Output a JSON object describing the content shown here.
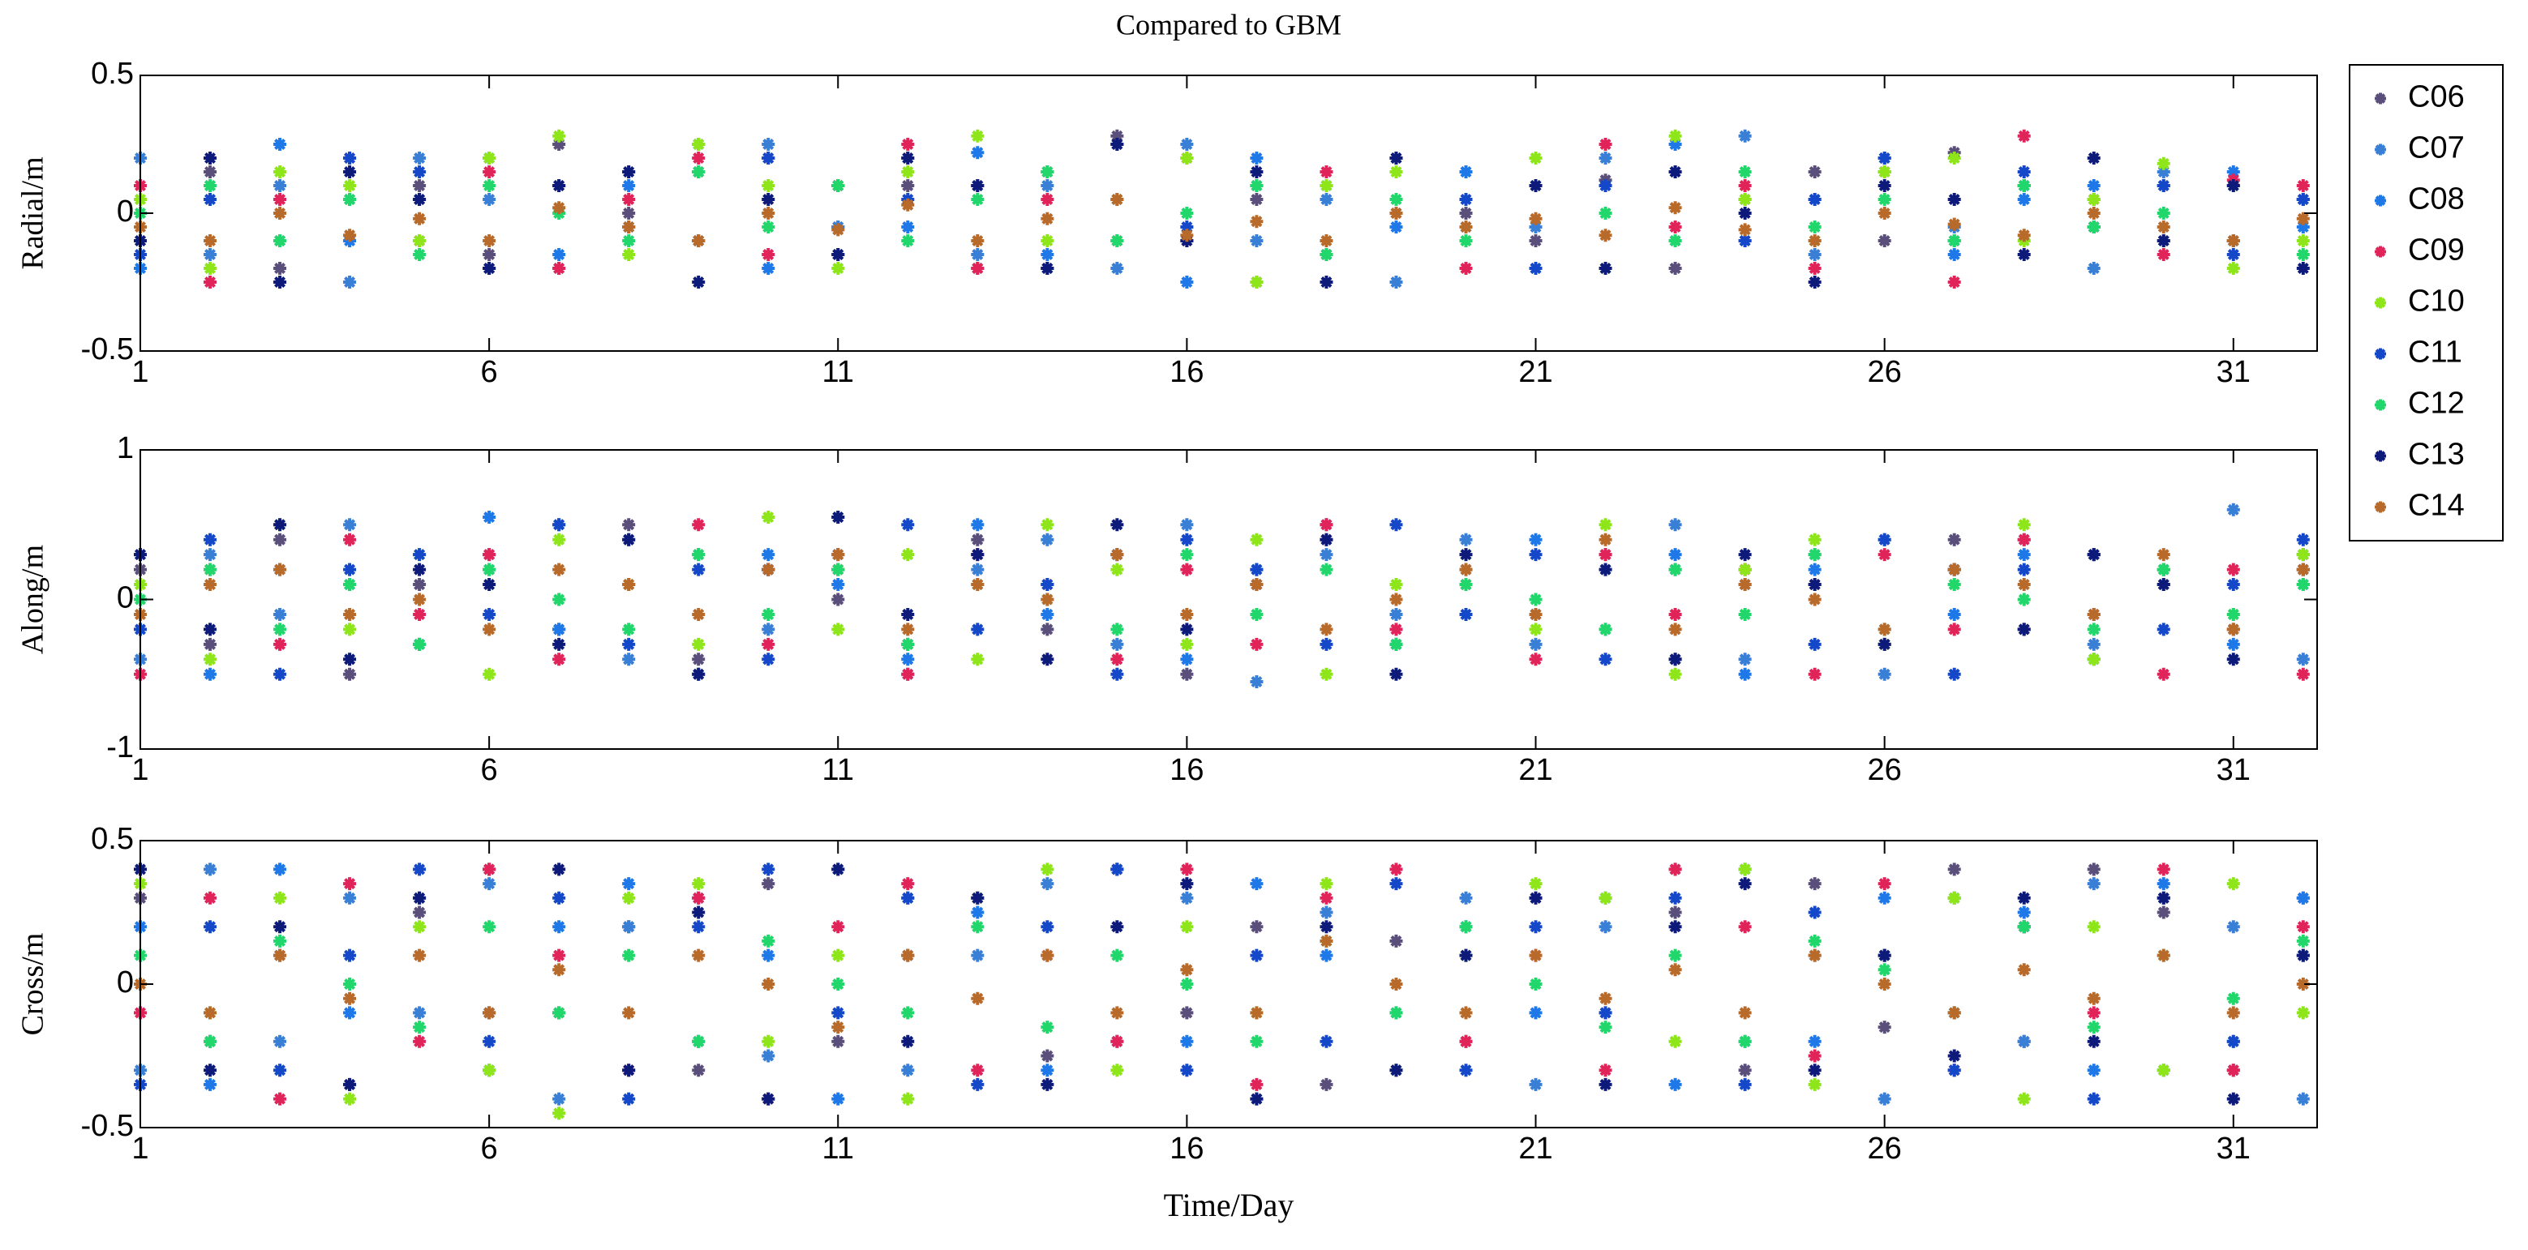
{
  "chart_data": [
    {
      "type": "scatter",
      "title": "Compared to GBM",
      "ylabel": "Radial/m",
      "x": [
        1,
        2,
        3,
        4,
        5,
        6,
        7,
        8,
        9,
        10,
        11,
        12,
        13,
        14,
        15,
        16,
        17,
        18,
        19,
        20,
        21,
        22,
        23,
        24,
        25,
        26,
        27,
        28,
        29,
        30,
        31,
        32
      ],
      "xlim": [
        1,
        32.2
      ],
      "xticks": [
        1,
        6,
        11,
        16,
        21,
        26,
        31
      ],
      "ylim": [
        -0.5,
        0.5
      ],
      "yticks": [
        -0.5,
        0,
        0.5
      ],
      "series": [
        {
          "name": "C06",
          "color": "#5a4e7a",
          "values": [
            -0.1,
            0.15,
            -0.2,
            0.05,
            0.1,
            -0.15,
            0.25,
            0.0,
            -0.1,
            0.2,
            -0.05,
            0.1,
            -0.2,
            0.15,
            0.28,
            -0.1,
            0.05,
            -0.15,
            0.2,
            0.0,
            -0.1,
            0.12,
            -0.2,
            0.05,
            0.15,
            -0.1,
            0.22,
            0.1,
            -0.05,
            0.1,
            -0.1,
            0.05
          ]
        },
        {
          "name": "C07",
          "color": "#3a7fd6",
          "values": [
            0.2,
            -0.15,
            0.1,
            -0.25,
            0.2,
            0.05,
            -0.2,
            0.15,
            -0.1,
            0.25,
            -0.05,
            0.2,
            -0.15,
            0.1,
            -0.2,
            0.25,
            -0.1,
            0.05,
            -0.25,
            0.15,
            -0.05,
            0.2,
            -0.1,
            0.28,
            -0.15,
            0.2,
            -0.05,
            0.1,
            -0.2,
            0.15,
            -0.1,
            0.05
          ]
        },
        {
          "name": "C08",
          "color": "#1f78e8",
          "values": [
            -0.2,
            0.1,
            0.25,
            -0.1,
            0.05,
            0.2,
            -0.15,
            0.1,
            0.25,
            -0.2,
            0.1,
            -0.05,
            0.22,
            -0.15,
            0.05,
            -0.25,
            0.2,
            0.1,
            -0.05,
            0.15,
            -0.2,
            0.1,
            0.25,
            -0.1,
            0.05,
            0.2,
            -0.15,
            0.05,
            0.1,
            -0.1,
            0.15,
            -0.05
          ]
        },
        {
          "name": "C09",
          "color": "#e0245a",
          "values": [
            0.1,
            -0.25,
            0.05,
            0.2,
            -0.1,
            0.15,
            -0.2,
            0.05,
            0.2,
            -0.15,
            0.1,
            0.25,
            -0.2,
            0.05,
            -0.1,
            0.2,
            -0.25,
            0.15,
            0.0,
            -0.2,
            0.1,
            0.25,
            -0.05,
            0.1,
            -0.2,
            0.15,
            -0.25,
            0.28,
            0.05,
            -0.15,
            0.12,
            0.1
          ]
        },
        {
          "name": "C10",
          "color": "#8ee51a",
          "values": [
            0.05,
            -0.2,
            0.15,
            0.1,
            -0.1,
            0.2,
            0.28,
            -0.15,
            0.25,
            0.1,
            -0.2,
            0.15,
            0.28,
            -0.1,
            0.05,
            0.2,
            -0.25,
            0.1,
            0.15,
            -0.1,
            0.2,
            -0.2,
            0.28,
            0.05,
            -0.1,
            0.15,
            0.2,
            -0.1,
            0.05,
            0.18,
            -0.2,
            -0.1
          ]
        },
        {
          "name": "C11",
          "color": "#1548c8",
          "values": [
            -0.15,
            0.05,
            -0.1,
            0.2,
            0.15,
            -0.2,
            0.1,
            -0.05,
            0.15,
            0.2,
            -0.15,
            0.05,
            0.1,
            -0.2,
            0.25,
            -0.05,
            0.1,
            -0.15,
            0.2,
            0.05,
            -0.2,
            0.1,
            0.15,
            -0.1,
            0.05,
            0.2,
            -0.1,
            0.15,
            -0.05,
            0.1,
            -0.15,
            0.05
          ]
        },
        {
          "name": "C12",
          "color": "#21d66a",
          "values": [
            0.0,
            0.1,
            -0.1,
            0.05,
            -0.15,
            0.1,
            0.0,
            -0.1,
            0.15,
            -0.05,
            0.1,
            -0.1,
            0.05,
            0.15,
            -0.1,
            0.0,
            0.1,
            -0.15,
            0.05,
            -0.1,
            0.1,
            0.0,
            -0.1,
            0.15,
            -0.05,
            0.05,
            -0.1,
            0.1,
            -0.05,
            0.0,
            0.1,
            -0.15
          ]
        },
        {
          "name": "C13",
          "color": "#0d1a7a",
          "values": [
            -0.1,
            0.2,
            -0.25,
            0.15,
            0.05,
            -0.2,
            0.1,
            0.15,
            -0.25,
            0.05,
            -0.15,
            0.2,
            0.1,
            -0.2,
            0.25,
            -0.1,
            0.15,
            -0.25,
            0.2,
            -0.05,
            0.1,
            -0.2,
            0.15,
            0.0,
            -0.25,
            0.1,
            0.05,
            -0.15,
            0.2,
            -0.1,
            0.1,
            -0.2
          ]
        },
        {
          "name": "C14",
          "color": "#b86a2a",
          "values": [
            -0.05,
            -0.1,
            0.0,
            -0.08,
            -0.02,
            -0.1,
            0.02,
            -0.05,
            -0.1,
            0.0,
            -0.06,
            0.03,
            -0.1,
            -0.02,
            0.05,
            -0.08,
            -0.03,
            -0.1,
            0.0,
            -0.05,
            -0.02,
            -0.08,
            0.02,
            -0.06,
            -0.1,
            0.0,
            -0.04,
            -0.08,
            0.0,
            -0.05,
            -0.1,
            -0.02
          ]
        }
      ]
    },
    {
      "type": "scatter",
      "ylabel": "Along/m",
      "x": [
        1,
        2,
        3,
        4,
        5,
        6,
        7,
        8,
        9,
        10,
        11,
        12,
        13,
        14,
        15,
        16,
        17,
        18,
        19,
        20,
        21,
        22,
        23,
        24,
        25,
        26,
        27,
        28,
        29,
        30,
        31,
        32
      ],
      "xlim": [
        1,
        32.2
      ],
      "xticks": [
        1,
        6,
        11,
        16,
        21,
        26,
        31
      ],
      "ylim": [
        -1,
        1
      ],
      "yticks": [
        -1,
        0,
        1
      ],
      "series": [
        {
          "values": [
            0.2,
            -0.3,
            0.4,
            -0.5,
            0.1,
            0.3,
            -0.2,
            0.5,
            -0.4,
            0.2,
            0.0,
            -0.3,
            0.4,
            -0.2,
            0.3,
            -0.5,
            0.1,
            0.4,
            -0.3,
            0.2,
            -0.1,
            0.3,
            -0.4,
            0.2,
            0.1,
            -0.3,
            0.4,
            -0.2,
            0.3,
            0.1,
            -0.2,
            0.3
          ]
        },
        {
          "values": [
            -0.4,
            0.3,
            -0.1,
            0.5,
            -0.3,
            0.2,
            0.5,
            -0.4,
            0.3,
            -0.2,
            0.55,
            -0.5,
            0.2,
            0.4,
            -0.3,
            0.5,
            -0.55,
            0.3,
            -0.1,
            0.4,
            -0.3,
            0.2,
            0.5,
            -0.4,
            0.3,
            -0.5,
            0.2,
            0.4,
            -0.3,
            0.2,
            0.6,
            -0.4
          ]
        },
        {
          "values": [
            0.3,
            -0.5,
            0.2,
            0.1,
            -0.3,
            0.55,
            -0.2,
            0.4,
            -0.5,
            0.3,
            0.1,
            -0.4,
            0.5,
            -0.1,
            0.3,
            -0.4,
            0.2,
            0.5,
            -0.3,
            0.1,
            0.4,
            -0.2,
            0.3,
            -0.5,
            0.2,
            0.4,
            -0.1,
            0.3,
            -0.4,
            0.2,
            -0.3,
            0.1
          ]
        },
        {
          "values": [
            -0.5,
            0.2,
            -0.3,
            0.4,
            -0.1,
            0.3,
            -0.4,
            0.1,
            0.5,
            -0.3,
            0.2,
            -0.5,
            0.3,
            0.1,
            -0.4,
            0.2,
            -0.3,
            0.5,
            -0.2,
            0.1,
            -0.4,
            0.3,
            -0.1,
            0.2,
            -0.5,
            0.3,
            -0.2,
            0.4,
            -0.1,
            -0.5,
            0.2,
            -0.5
          ]
        },
        {
          "values": [
            0.1,
            -0.4,
            0.5,
            -0.2,
            0.3,
            -0.5,
            0.4,
            0.1,
            -0.3,
            0.55,
            -0.2,
            0.3,
            -0.4,
            0.5,
            0.2,
            -0.3,
            0.4,
            -0.5,
            0.1,
            0.3,
            -0.2,
            0.5,
            -0.5,
            0.2,
            0.4,
            -0.3,
            0.1,
            0.5,
            -0.4,
            0.2,
            -0.1,
            0.3
          ]
        },
        {
          "values": [
            -0.2,
            0.4,
            -0.5,
            0.2,
            0.3,
            -0.1,
            0.5,
            -0.3,
            0.2,
            -0.4,
            0.3,
            0.5,
            -0.2,
            0.1,
            -0.5,
            0.4,
            0.2,
            -0.3,
            0.5,
            -0.1,
            0.3,
            -0.4,
            0.2,
            0.1,
            -0.3,
            0.4,
            -0.5,
            0.2,
            0.3,
            -0.2,
            0.1,
            0.4
          ]
        },
        {
          "values": [
            0.0,
            0.2,
            -0.2,
            0.1,
            -0.3,
            0.2,
            0.0,
            -0.2,
            0.3,
            -0.1,
            0.2,
            -0.3,
            0.1,
            0.0,
            -0.2,
            0.3,
            -0.1,
            0.2,
            -0.3,
            0.1,
            0.0,
            -0.2,
            0.2,
            -0.1,
            0.3,
            -0.2,
            0.1,
            0.0,
            -0.2,
            0.2,
            -0.1,
            0.1
          ]
        },
        {
          "values": [
            0.3,
            -0.2,
            0.5,
            -0.4,
            0.2,
            0.1,
            -0.3,
            0.4,
            -0.5,
            0.2,
            0.55,
            -0.1,
            0.3,
            -0.4,
            0.5,
            -0.2,
            0.1,
            0.4,
            -0.5,
            0.3,
            -0.1,
            0.2,
            -0.4,
            0.3,
            0.1,
            -0.3,
            0.2,
            -0.2,
            0.3,
            0.1,
            -0.4,
            0.2
          ]
        },
        {
          "values": [
            -0.1,
            0.1,
            0.2,
            -0.1,
            0.0,
            -0.2,
            0.2,
            0.1,
            -0.1,
            0.2,
            0.3,
            -0.2,
            0.1,
            0.0,
            0.3,
            -0.1,
            0.1,
            -0.2,
            0.0,
            0.2,
            -0.1,
            0.4,
            -0.2,
            0.1,
            0.0,
            -0.2,
            0.2,
            0.1,
            -0.1,
            0.3,
            -0.2,
            0.2
          ]
        }
      ]
    },
    {
      "type": "scatter",
      "ylabel": "Cross/m",
      "xlabel": "Time/Day",
      "x": [
        1,
        2,
        3,
        4,
        5,
        6,
        7,
        8,
        9,
        10,
        11,
        12,
        13,
        14,
        15,
        16,
        17,
        18,
        19,
        20,
        21,
        22,
        23,
        24,
        25,
        26,
        27,
        28,
        29,
        30,
        31,
        32
      ],
      "xlim": [
        1,
        32.2
      ],
      "xticks": [
        1,
        6,
        11,
        16,
        21,
        26,
        31
      ],
      "ylim": [
        -0.5,
        0.5
      ],
      "yticks": [
        -0.5,
        0,
        0.5
      ],
      "series": [
        {
          "values": [
            0.3,
            -0.2,
            0.1,
            -0.35,
            0.25,
            0.4,
            -0.1,
            0.2,
            -0.3,
            0.35,
            -0.2,
            0.1,
            0.3,
            -0.25,
            0.4,
            -0.1,
            0.2,
            -0.35,
            0.15,
            -0.2,
            0.3,
            -0.1,
            0.25,
            -0.3,
            0.35,
            -0.15,
            0.4,
            -0.2,
            0.4,
            0.25,
            -0.3,
            0.3
          ]
        },
        {
          "values": [
            -0.3,
            0.4,
            -0.2,
            0.3,
            -0.1,
            0.35,
            -0.4,
            0.2,
            0.3,
            -0.25,
            0.4,
            -0.3,
            0.1,
            0.35,
            -0.2,
            0.3,
            -0.4,
            0.25,
            -0.1,
            0.3,
            -0.35,
            0.2,
            0.4,
            -0.2,
            0.1,
            -0.4,
            0.3,
            -0.2,
            0.35,
            -0.3,
            0.2,
            -0.4
          ]
        },
        {
          "values": [
            0.2,
            -0.35,
            0.4,
            -0.1,
            0.3,
            -0.3,
            0.2,
            0.35,
            -0.2,
            0.1,
            -0.4,
            0.3,
            0.25,
            -0.3,
            0.4,
            -0.2,
            0.35,
            0.1,
            -0.3,
            0.2,
            -0.1,
            0.3,
            -0.35,
            0.4,
            -0.2,
            0.3,
            -0.1,
            0.25,
            -0.3,
            0.35,
            -0.2,
            0.3
          ]
        },
        {
          "values": [
            -0.1,
            0.3,
            -0.4,
            0.35,
            -0.2,
            0.4,
            0.1,
            -0.3,
            0.3,
            -0.4,
            0.2,
            0.35,
            -0.3,
            0.1,
            -0.2,
            0.4,
            -0.35,
            0.3,
            0.4,
            -0.2,
            0.1,
            -0.3,
            0.4,
            0.2,
            -0.25,
            0.35,
            -0.3,
            0.2,
            -0.1,
            0.4,
            -0.3,
            0.2
          ]
        },
        {
          "values": [
            0.35,
            -0.1,
            0.3,
            -0.4,
            0.2,
            -0.3,
            -0.45,
            0.3,
            0.35,
            -0.2,
            0.1,
            -0.4,
            0.3,
            0.4,
            -0.3,
            0.2,
            -0.1,
            0.35,
            -0.3,
            0.1,
            0.35,
            0.3,
            -0.2,
            0.4,
            -0.35,
            0.1,
            0.3,
            -0.4,
            0.2,
            -0.3,
            0.35,
            -0.1
          ]
        },
        {
          "values": [
            -0.35,
            0.2,
            -0.3,
            0.1,
            0.4,
            -0.2,
            0.3,
            -0.4,
            0.2,
            0.4,
            -0.1,
            0.3,
            -0.35,
            0.2,
            0.4,
            -0.3,
            0.1,
            -0.2,
            0.35,
            -0.3,
            0.2,
            -0.1,
            0.3,
            -0.35,
            0.25,
            0.1,
            -0.3,
            0.2,
            -0.4,
            0.3,
            -0.2,
            0.1
          ]
        },
        {
          "values": [
            0.1,
            -0.2,
            0.15,
            0.0,
            -0.15,
            0.2,
            -0.1,
            0.1,
            -0.2,
            0.15,
            0.0,
            -0.1,
            0.2,
            -0.15,
            0.1,
            0.0,
            -0.2,
            0.15,
            -0.1,
            0.2,
            0.0,
            -0.15,
            0.1,
            -0.2,
            0.15,
            0.05,
            -0.1,
            0.2,
            -0.15,
            0.1,
            -0.05,
            0.15
          ]
        },
        {
          "values": [
            0.4,
            -0.3,
            0.2,
            -0.35,
            0.3,
            -0.1,
            0.4,
            -0.3,
            0.25,
            -0.4,
            0.4,
            -0.2,
            0.3,
            -0.35,
            0.2,
            0.35,
            -0.4,
            0.2,
            -0.3,
            0.1,
            0.3,
            -0.35,
            0.2,
            0.35,
            -0.3,
            0.1,
            -0.25,
            0.3,
            -0.2,
            0.3,
            -0.4,
            0.1
          ]
        },
        {
          "values": [
            0.0,
            -0.1,
            0.1,
            -0.05,
            0.1,
            -0.1,
            0.05,
            -0.1,
            0.1,
            0.0,
            -0.15,
            0.1,
            -0.05,
            0.1,
            -0.1,
            0.05,
            -0.1,
            0.15,
            0.0,
            -0.1,
            0.1,
            -0.05,
            0.05,
            -0.1,
            0.1,
            0.0,
            -0.1,
            0.05,
            -0.05,
            0.1,
            -0.1,
            0.0
          ]
        }
      ]
    }
  ]
}
